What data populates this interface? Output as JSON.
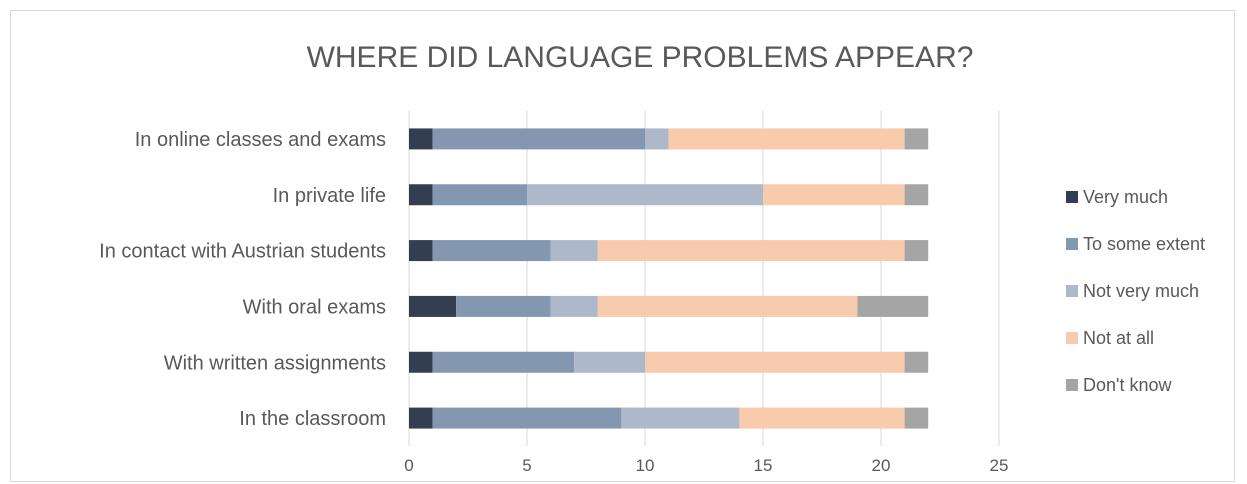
{
  "chart_data": {
    "type": "bar",
    "orientation": "horizontal",
    "stacked": true,
    "title": "WHERE DID LANGUAGE PROBLEMS APPEAR?",
    "categories": [
      "In online classes and exams",
      "In private life",
      "In contact with Austrian students",
      "With oral exams",
      "With written assignments",
      "In the classroom"
    ],
    "series": [
      {
        "name": "Very much",
        "color": "#333f50",
        "values": [
          1,
          1,
          1,
          2,
          1,
          1
        ]
      },
      {
        "name": "To some extent",
        "color": "#8497b0",
        "values": [
          9,
          4,
          5,
          4,
          6,
          8
        ]
      },
      {
        "name": "Not very much",
        "color": "#adb9ca",
        "values": [
          1,
          10,
          2,
          2,
          3,
          5
        ]
      },
      {
        "name": "Not at all",
        "color": "#f8cbad",
        "values": [
          10,
          6,
          13,
          11,
          11,
          7
        ]
      },
      {
        "name": "Don't know",
        "color": "#a5a5a5",
        "values": [
          1,
          1,
          1,
          3,
          1,
          1
        ]
      }
    ],
    "xlim": [
      0,
      25
    ],
    "xticks": [
      0,
      5,
      10,
      15,
      20,
      25
    ],
    "grid": true,
    "legend_position": "right"
  }
}
